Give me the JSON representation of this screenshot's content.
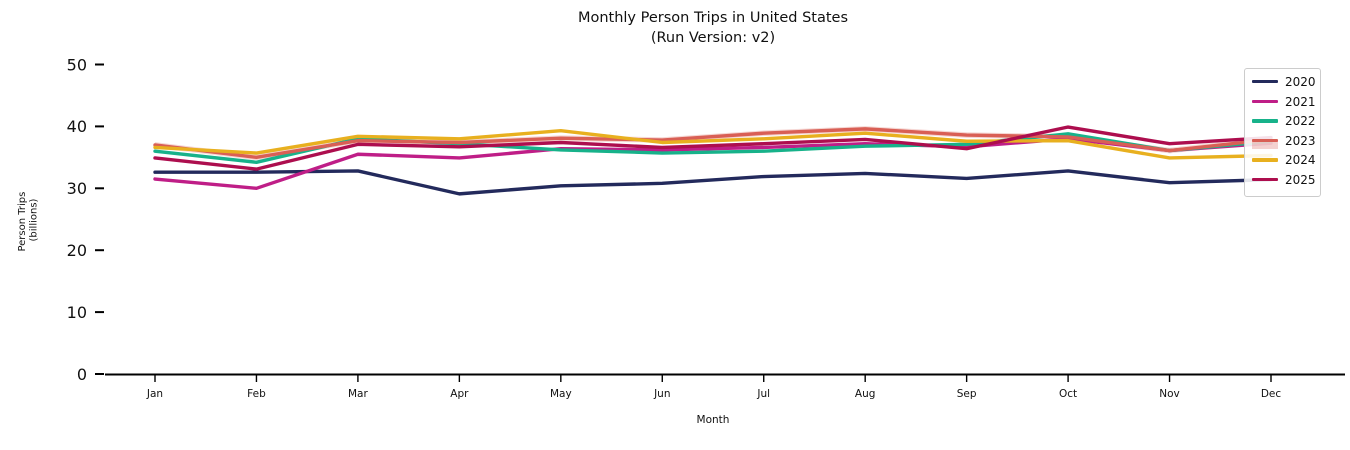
{
  "chart": {
    "title_line1": "Monthly Person Trips in United States",
    "title_line2": "(Run Version: v2)",
    "xlabel": "Month",
    "ylabel_line1": "Person Trips",
    "ylabel_line2": "(billions)"
  },
  "chart_data": {
    "type": "line",
    "title": "Monthly Person Trips in United States (Run Version: v2)",
    "xlabel": "Month",
    "ylabel": "Person Trips (billions)",
    "categories": [
      "Jan",
      "Feb",
      "Mar",
      "Apr",
      "May",
      "Jun",
      "Jul",
      "Aug",
      "Sep",
      "Oct",
      "Nov",
      "Dec"
    ],
    "ylim": [
      0,
      50
    ],
    "yticks": [
      0,
      10,
      20,
      30,
      40,
      50
    ],
    "grid": false,
    "legend_position": "upper right",
    "axis_color": "#000000",
    "series": [
      {
        "name": "2020",
        "color": "#232a5c",
        "values": [
          32.6,
          32.6,
          32.8,
          29.1,
          30.4,
          30.8,
          31.9,
          32.4,
          31.6,
          32.8,
          30.9,
          31.4
        ]
      },
      {
        "name": "2021",
        "color": "#bf1e87",
        "values": [
          31.5,
          30.0,
          35.5,
          34.9,
          36.4,
          36.2,
          36.6,
          37.2,
          36.7,
          38.0,
          36.1,
          37.3
        ]
      },
      {
        "name": "2022",
        "color": "#17b28a",
        "values": [
          36.0,
          34.2,
          38.0,
          37.2,
          36.2,
          35.7,
          36.0,
          36.8,
          37.1,
          38.8,
          36.1,
          37.6
        ]
      },
      {
        "name": "2023",
        "color": "#d95f55",
        "values": [
          37.0,
          35.0,
          37.7,
          37.4,
          38.1,
          37.8,
          38.9,
          39.6,
          38.6,
          38.3,
          36.1,
          37.9
        ],
        "band_halfwidth": 0.45
      },
      {
        "name": "2024",
        "color": "#e8b01f",
        "values": [
          36.6,
          35.7,
          38.4,
          38.0,
          39.3,
          37.4,
          38.0,
          38.9,
          37.6,
          37.7,
          34.9,
          35.3
        ]
      },
      {
        "name": "2025",
        "color": "#ad0e4e",
        "values": [
          34.9,
          33.1,
          37.1,
          36.7,
          37.4,
          36.6,
          37.2,
          37.9,
          36.4,
          39.9,
          37.2,
          38.2
        ]
      }
    ]
  }
}
